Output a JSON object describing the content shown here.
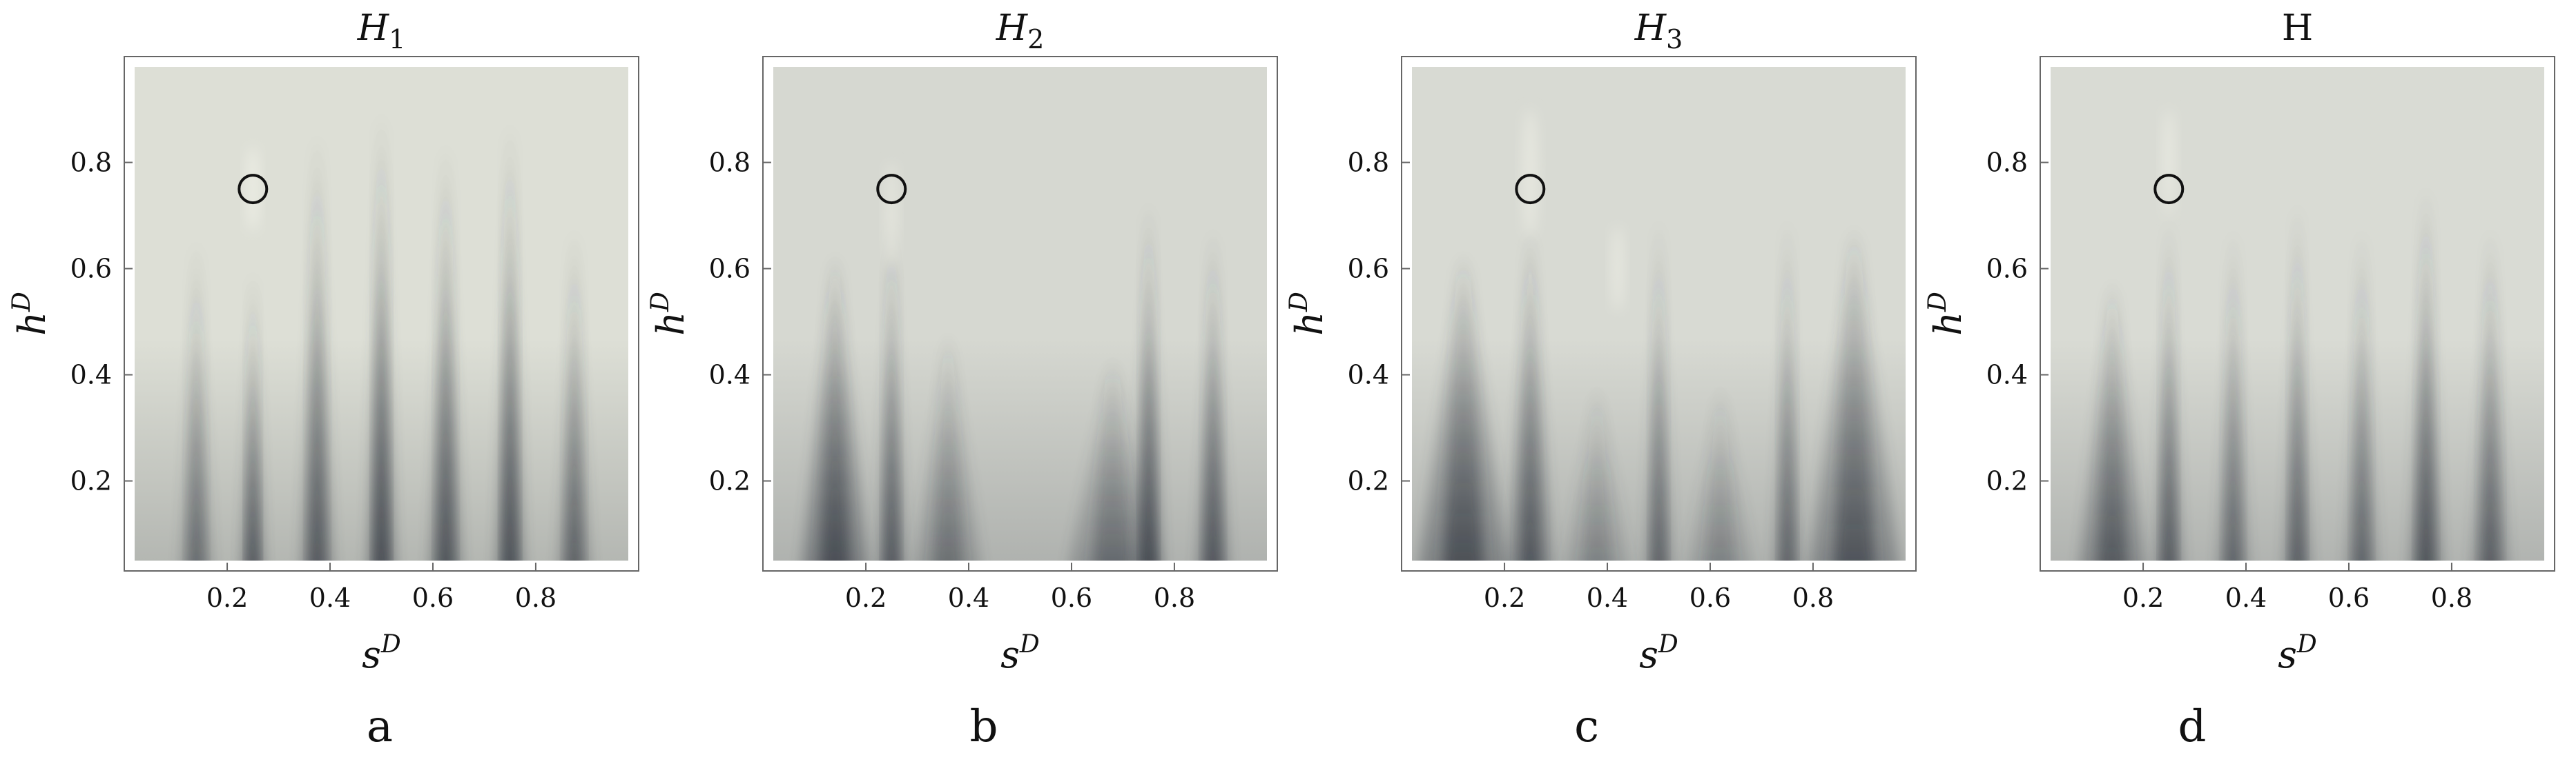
{
  "chart_data": [
    {
      "type": "heatmap",
      "panel": "a",
      "title": "H",
      "title_subscript": "1",
      "xlabel": "s",
      "xlabel_sup": "D",
      "ylabel": "h",
      "ylabel_sup": "D",
      "xlim": [
        0.02,
        0.98
      ],
      "ylim": [
        0.05,
        0.98
      ],
      "xticks": [
        "0.2",
        "0.4",
        "0.6",
        "0.8"
      ],
      "xtick_values": [
        0.2,
        0.4,
        0.6,
        0.8
      ],
      "yticks": [
        "0.2",
        "0.4",
        "0.6",
        "0.8"
      ],
      "ytick_values": [
        0.2,
        0.4,
        0.6,
        0.8
      ],
      "marker": {
        "x": 0.25,
        "y": 0.75
      },
      "background": "#dddfd6",
      "light_color": "#ecede4",
      "dark_color": "#3a3f47",
      "ridges": [
        {
          "x": 0.14,
          "top": 0.68,
          "strength": 0.6,
          "width": 0.014
        },
        {
          "x": 0.25,
          "top": 0.62,
          "strength": 0.9,
          "width": 0.01
        },
        {
          "x": 0.375,
          "top": 0.88,
          "strength": 0.8,
          "width": 0.014
        },
        {
          "x": 0.5,
          "top": 0.92,
          "strength": 1.0,
          "width": 0.012
        },
        {
          "x": 0.625,
          "top": 0.86,
          "strength": 0.85,
          "width": 0.014
        },
        {
          "x": 0.75,
          "top": 0.9,
          "strength": 0.95,
          "width": 0.012
        },
        {
          "x": 0.875,
          "top": 0.7,
          "strength": 0.7,
          "width": 0.014
        }
      ],
      "light_spots": [
        {
          "x": 0.25,
          "y": 0.75,
          "rx": 0.012,
          "ry": 0.08
        }
      ]
    },
    {
      "type": "heatmap",
      "panel": "b",
      "title": "H",
      "title_subscript": "2",
      "xlabel": "s",
      "xlabel_sup": "D",
      "ylabel": "h",
      "ylabel_sup": "D",
      "xlim": [
        0.02,
        0.98
      ],
      "ylim": [
        0.05,
        0.98
      ],
      "xticks": [
        "0.2",
        "0.4",
        "0.6",
        "0.8"
      ],
      "xtick_values": [
        0.2,
        0.4,
        0.6,
        0.8
      ],
      "yticks": [
        "0.2",
        "0.4",
        "0.6",
        "0.8"
      ],
      "ytick_values": [
        0.2,
        0.4,
        0.6,
        0.8
      ],
      "marker": {
        "x": 0.25,
        "y": 0.75
      },
      "background": "#d6d8d1",
      "light_color": "#e4e5dd",
      "dark_color": "#3c4149",
      "ridges": [
        {
          "x": 0.14,
          "top": 0.65,
          "strength": 0.85,
          "width": 0.03
        },
        {
          "x": 0.25,
          "top": 0.72,
          "strength": 0.85,
          "width": 0.012
        },
        {
          "x": 0.36,
          "top": 0.5,
          "strength": 0.5,
          "width": 0.03
        },
        {
          "x": 0.68,
          "top": 0.45,
          "strength": 0.55,
          "width": 0.04
        },
        {
          "x": 0.75,
          "top": 0.75,
          "strength": 1.0,
          "width": 0.012
        },
        {
          "x": 0.875,
          "top": 0.7,
          "strength": 0.85,
          "width": 0.014
        }
      ],
      "light_spots": [
        {
          "x": 0.25,
          "y": 0.7,
          "rx": 0.012,
          "ry": 0.1
        }
      ]
    },
    {
      "type": "heatmap",
      "panel": "c",
      "title": "H",
      "title_subscript": "3",
      "xlabel": "s",
      "xlabel_sup": "D",
      "ylabel": "h",
      "ylabel_sup": "D",
      "xlim": [
        0.02,
        0.98
      ],
      "ylim": [
        0.05,
        0.98
      ],
      "xticks": [
        "0.2",
        "0.4",
        "0.6",
        "0.8"
      ],
      "xtick_values": [
        0.2,
        0.4,
        0.6,
        0.8
      ],
      "yticks": [
        "0.2",
        "0.4",
        "0.6",
        "0.8"
      ],
      "ytick_values": [
        0.2,
        0.4,
        0.6,
        0.8
      ],
      "marker": {
        "x": 0.25,
        "y": 0.75
      },
      "background": "#d8dad3",
      "light_color": "#e6e7df",
      "dark_color": "#3a3f47",
      "ridges": [
        {
          "x": 0.12,
          "top": 0.65,
          "strength": 0.8,
          "width": 0.04
        },
        {
          "x": 0.25,
          "top": 0.7,
          "strength": 0.75,
          "width": 0.02
        },
        {
          "x": 0.5,
          "top": 0.72,
          "strength": 0.7,
          "width": 0.012
        },
        {
          "x": 0.38,
          "top": 0.4,
          "strength": 0.35,
          "width": 0.03
        },
        {
          "x": 0.62,
          "top": 0.4,
          "strength": 0.35,
          "width": 0.03
        },
        {
          "x": 0.75,
          "top": 0.72,
          "strength": 0.7,
          "width": 0.012
        },
        {
          "x": 0.88,
          "top": 0.7,
          "strength": 0.75,
          "width": 0.04
        }
      ],
      "light_spots": [
        {
          "x": 0.25,
          "y": 0.78,
          "rx": 0.015,
          "ry": 0.12
        },
        {
          "x": 0.42,
          "y": 0.6,
          "rx": 0.012,
          "ry": 0.08
        }
      ]
    },
    {
      "type": "heatmap",
      "panel": "d",
      "title": "H",
      "title_subscript": "",
      "xlabel": "s",
      "xlabel_sup": "D",
      "ylabel": "h",
      "ylabel_sup": "D",
      "xlim": [
        0.02,
        0.98
      ],
      "ylim": [
        0.05,
        0.98
      ],
      "xticks": [
        "0.2",
        "0.4",
        "0.6",
        "0.8"
      ],
      "xtick_values": [
        0.2,
        0.4,
        0.6,
        0.8
      ],
      "yticks": [
        "0.2",
        "0.4",
        "0.6",
        "0.8"
      ],
      "ytick_values": [
        0.2,
        0.4,
        0.6,
        0.8
      ],
      "marker": {
        "x": 0.25,
        "y": 0.75
      },
      "background": "#d9dbd4",
      "light_color": "#e7e8e0",
      "dark_color": "#3a3f47",
      "ridges": [
        {
          "x": 0.14,
          "top": 0.6,
          "strength": 0.7,
          "width": 0.03
        },
        {
          "x": 0.25,
          "top": 0.72,
          "strength": 0.8,
          "width": 0.012
        },
        {
          "x": 0.375,
          "top": 0.7,
          "strength": 0.65,
          "width": 0.014
        },
        {
          "x": 0.5,
          "top": 0.75,
          "strength": 0.75,
          "width": 0.012
        },
        {
          "x": 0.625,
          "top": 0.7,
          "strength": 0.65,
          "width": 0.014
        },
        {
          "x": 0.75,
          "top": 0.78,
          "strength": 0.85,
          "width": 0.014
        },
        {
          "x": 0.875,
          "top": 0.7,
          "strength": 0.7,
          "width": 0.016
        }
      ],
      "light_spots": [
        {
          "x": 0.25,
          "y": 0.8,
          "rx": 0.012,
          "ry": 0.1
        }
      ]
    }
  ]
}
